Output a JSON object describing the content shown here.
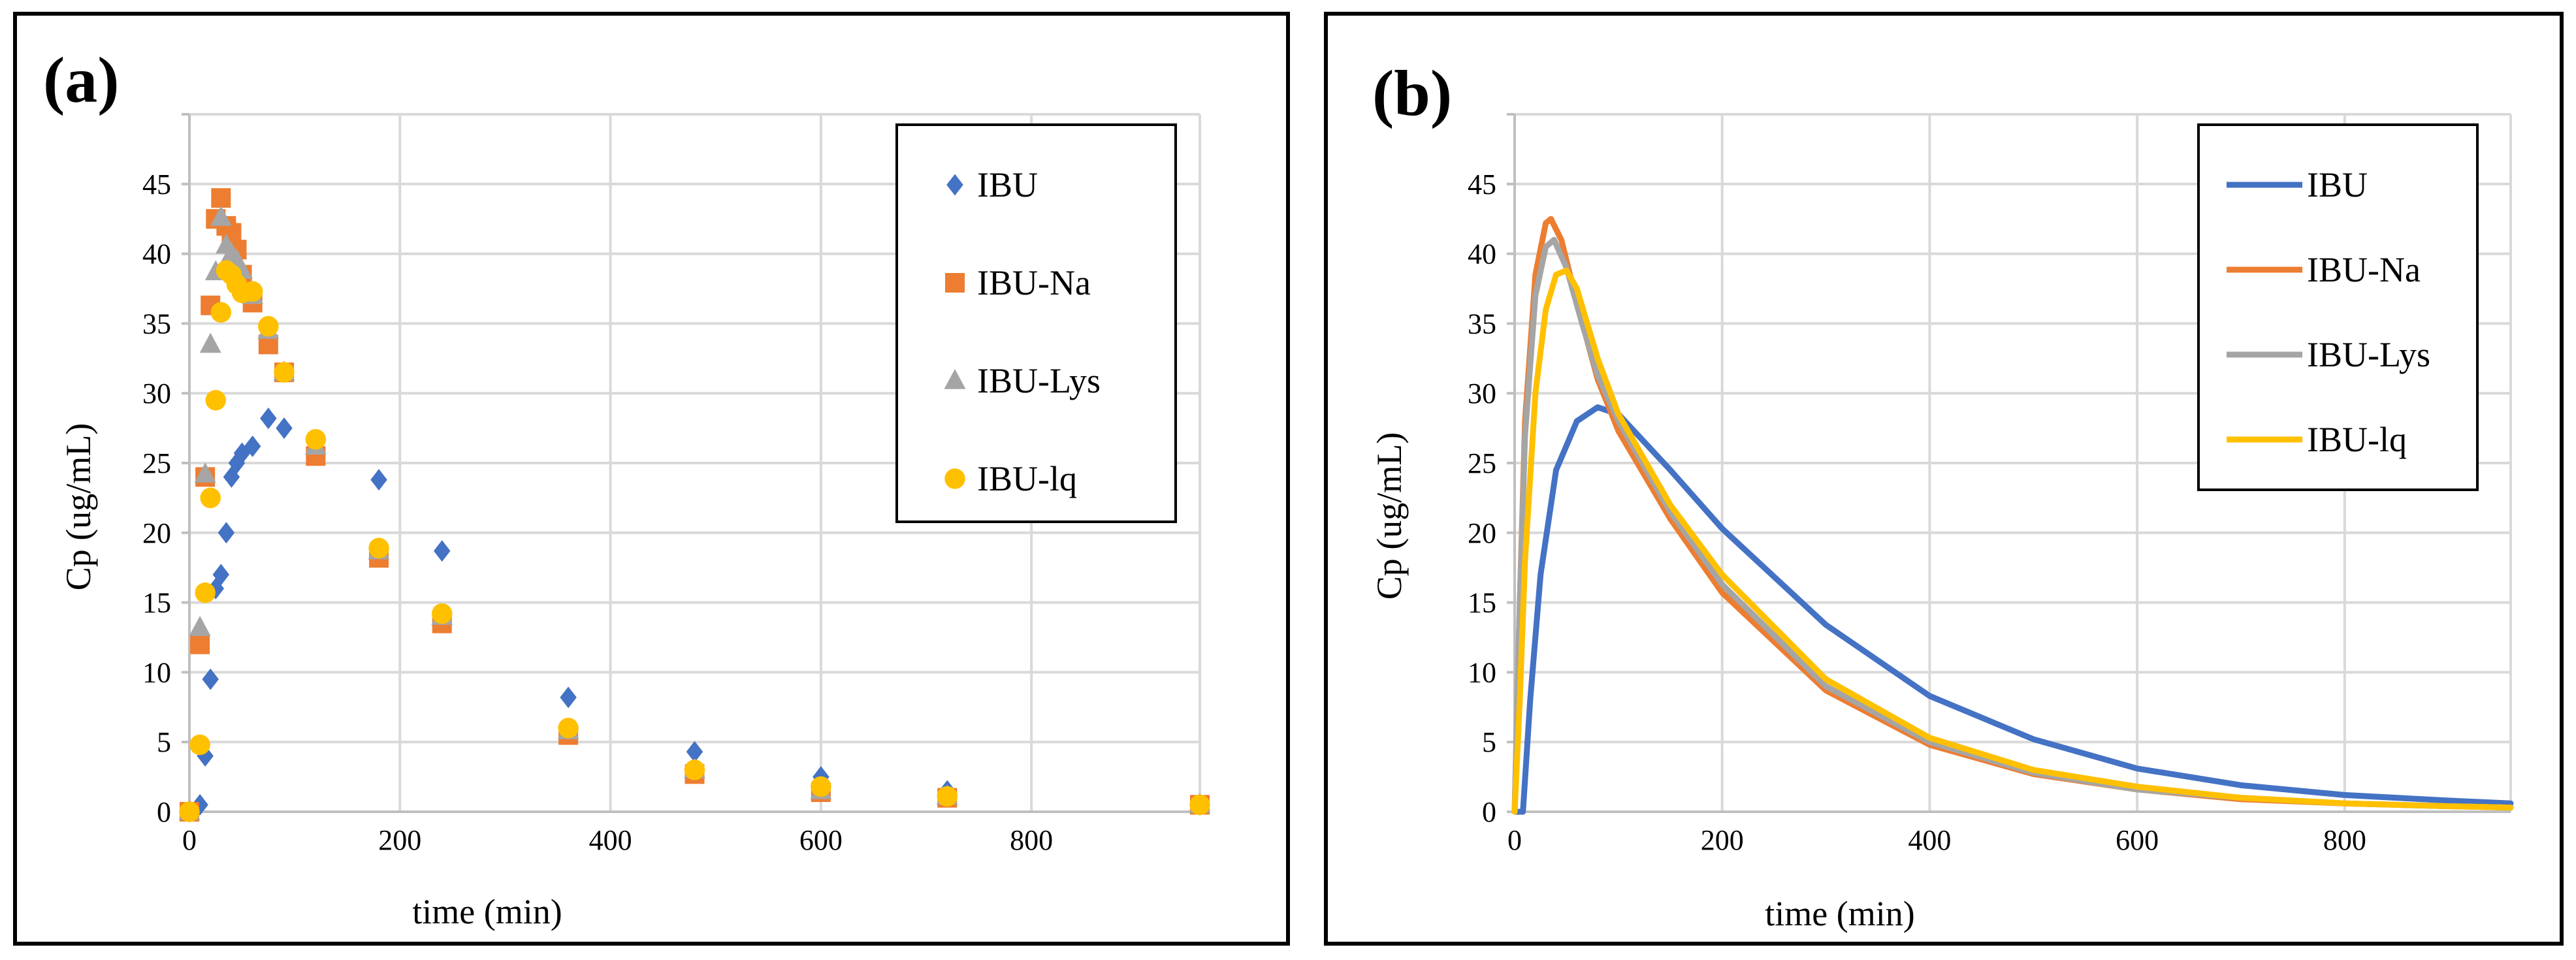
{
  "chart_data": [
    {
      "type": "scatter",
      "panel_label": "(a)",
      "xlabel": "time (min)",
      "ylabel": "Cp (ug/mL)",
      "xlim": [
        0,
        960
      ],
      "ylim": [
        0,
        50
      ],
      "xticks": [
        0,
        200,
        400,
        600,
        800
      ],
      "yticks": [
        0,
        5,
        10,
        15,
        20,
        25,
        30,
        35,
        40,
        45
      ],
      "grid": true,
      "legend_position": "top-right",
      "series": [
        {
          "name": "IBU",
          "marker": "diamond",
          "color": "#4472c4",
          "points": [
            [
              0,
              0
            ],
            [
              10,
              0.5
            ],
            [
              15,
              4
            ],
            [
              20,
              9.5
            ],
            [
              25,
              16
            ],
            [
              30,
              17
            ],
            [
              35,
              20
            ],
            [
              40,
              24
            ],
            [
              45,
              25
            ],
            [
              50,
              25.7
            ],
            [
              60,
              26.2
            ],
            [
              75,
              28.2
            ],
            [
              90,
              27.5
            ],
            [
              120,
              26
            ],
            [
              180,
              23.8
            ],
            [
              240,
              18.7
            ],
            [
              360,
              8.2
            ],
            [
              480,
              4.3
            ],
            [
              600,
              2.5
            ],
            [
              720,
              1.5
            ],
            [
              960,
              0.5
            ]
          ]
        },
        {
          "name": "IBU-Na",
          "marker": "square",
          "color": "#ed7d31",
          "points": [
            [
              0,
              0
            ],
            [
              10,
              12
            ],
            [
              15,
              24
            ],
            [
              20,
              36.3
            ],
            [
              25,
              42.5
            ],
            [
              30,
              44
            ],
            [
              35,
              42
            ],
            [
              40,
              41.5
            ],
            [
              45,
              40.3
            ],
            [
              50,
              38.5
            ],
            [
              60,
              36.5
            ],
            [
              75,
              33.5
            ],
            [
              90,
              31.5
            ],
            [
              120,
              25.5
            ],
            [
              180,
              18.2
            ],
            [
              240,
              13.5
            ],
            [
              360,
              5.5
            ],
            [
              480,
              2.7
            ],
            [
              600,
              1.4
            ],
            [
              720,
              1
            ],
            [
              960,
              0.5
            ]
          ]
        },
        {
          "name": "IBU-Lys",
          "marker": "triangle",
          "color": "#a5a5a5",
          "points": [
            [
              0,
              0
            ],
            [
              10,
              13.2
            ],
            [
              15,
              24.2
            ],
            [
              20,
              33.5
            ],
            [
              25,
              38.7
            ],
            [
              30,
              42.6
            ],
            [
              35,
              40.6
            ],
            [
              40,
              40
            ],
            [
              45,
              39.5
            ],
            [
              50,
              38.8
            ],
            [
              60,
              37
            ],
            [
              75,
              34.5
            ],
            [
              90,
              31.5
            ],
            [
              120,
              26.2
            ],
            [
              180,
              18.7
            ],
            [
              240,
              14
            ],
            [
              360,
              5.8
            ],
            [
              480,
              3
            ],
            [
              600,
              1.5
            ],
            [
              720,
              1.1
            ],
            [
              960,
              0.5
            ]
          ]
        },
        {
          "name": "IBU-lq",
          "marker": "circle",
          "color": "#ffc000",
          "points": [
            [
              0,
              0
            ],
            [
              10,
              4.8
            ],
            [
              15,
              15.7
            ],
            [
              20,
              22.5
            ],
            [
              25,
              29.5
            ],
            [
              30,
              35.8
            ],
            [
              35,
              38.8
            ],
            [
              40,
              38.5
            ],
            [
              45,
              37.8
            ],
            [
              50,
              37.2
            ],
            [
              60,
              37.3
            ],
            [
              75,
              34.8
            ],
            [
              90,
              31.5
            ],
            [
              120,
              26.7
            ],
            [
              180,
              18.9
            ],
            [
              240,
              14.2
            ],
            [
              360,
              6
            ],
            [
              480,
              3
            ],
            [
              600,
              1.8
            ],
            [
              720,
              1.1
            ],
            [
              960,
              0.5
            ]
          ]
        }
      ]
    },
    {
      "type": "line",
      "panel_label": "(b)",
      "xlabel": "time (min)",
      "ylabel": "Cp (ug/mL)",
      "xlim": [
        0,
        960
      ],
      "ylim": [
        0,
        50
      ],
      "xticks": [
        0,
        200,
        400,
        600,
        800
      ],
      "yticks": [
        0,
        5,
        10,
        15,
        20,
        25,
        30,
        35,
        40,
        45
      ],
      "grid": true,
      "legend_position": "top-right",
      "series": [
        {
          "name": "IBU",
          "color": "#4472c4",
          "points": [
            [
              0,
              0
            ],
            [
              8,
              0
            ],
            [
              15,
              8
            ],
            [
              25,
              17
            ],
            [
              40,
              24.5
            ],
            [
              60,
              28
            ],
            [
              80,
              29
            ],
            [
              100,
              28.5
            ],
            [
              150,
              24.5
            ],
            [
              200,
              20.3
            ],
            [
              300,
              13.4
            ],
            [
              400,
              8.3
            ],
            [
              500,
              5.2
            ],
            [
              600,
              3.1
            ],
            [
              700,
              1.9
            ],
            [
              800,
              1.2
            ],
            [
              900,
              0.8
            ],
            [
              960,
              0.6
            ]
          ]
        },
        {
          "name": "IBU-Na",
          "color": "#ed7d31",
          "points": [
            [
              0,
              0
            ],
            [
              5,
              15
            ],
            [
              10,
              28
            ],
            [
              20,
              38.5
            ],
            [
              30,
              42.2
            ],
            [
              35,
              42.5
            ],
            [
              45,
              41
            ],
            [
              60,
              36.5
            ],
            [
              80,
              31
            ],
            [
              100,
              27.3
            ],
            [
              150,
              21
            ],
            [
              200,
              15.7
            ],
            [
              300,
              8.7
            ],
            [
              400,
              4.8
            ],
            [
              500,
              2.7
            ],
            [
              600,
              1.6
            ],
            [
              700,
              0.9
            ],
            [
              800,
              0.6
            ],
            [
              900,
              0.4
            ],
            [
              960,
              0.3
            ]
          ]
        },
        {
          "name": "IBU-Lys",
          "color": "#a5a5a5",
          "points": [
            [
              0,
              0
            ],
            [
              5,
              15
            ],
            [
              10,
              27
            ],
            [
              20,
              37
            ],
            [
              30,
              40.5
            ],
            [
              38,
              41
            ],
            [
              50,
              39
            ],
            [
              65,
              35
            ],
            [
              80,
              31.3
            ],
            [
              100,
              28
            ],
            [
              150,
              21.5
            ],
            [
              200,
              16.3
            ],
            [
              300,
              9
            ],
            [
              400,
              5
            ],
            [
              500,
              2.8
            ],
            [
              600,
              1.6
            ],
            [
              700,
              1
            ],
            [
              800,
              0.6
            ],
            [
              900,
              0.4
            ],
            [
              960,
              0.3
            ]
          ]
        },
        {
          "name": "IBU-lq",
          "color": "#ffc000",
          "points": [
            [
              0,
              0
            ],
            [
              5,
              8
            ],
            [
              10,
              18
            ],
            [
              20,
              30
            ],
            [
              30,
              36
            ],
            [
              40,
              38.5
            ],
            [
              50,
              38.8
            ],
            [
              60,
              37.5
            ],
            [
              80,
              32.5
            ],
            [
              100,
              28.5
            ],
            [
              150,
              22
            ],
            [
              200,
              17
            ],
            [
              300,
              9.5
            ],
            [
              400,
              5.3
            ],
            [
              500,
              3
            ],
            [
              600,
              1.8
            ],
            [
              700,
              1
            ],
            [
              800,
              0.6
            ],
            [
              900,
              0.4
            ],
            [
              960,
              0.3
            ]
          ]
        }
      ]
    }
  ]
}
